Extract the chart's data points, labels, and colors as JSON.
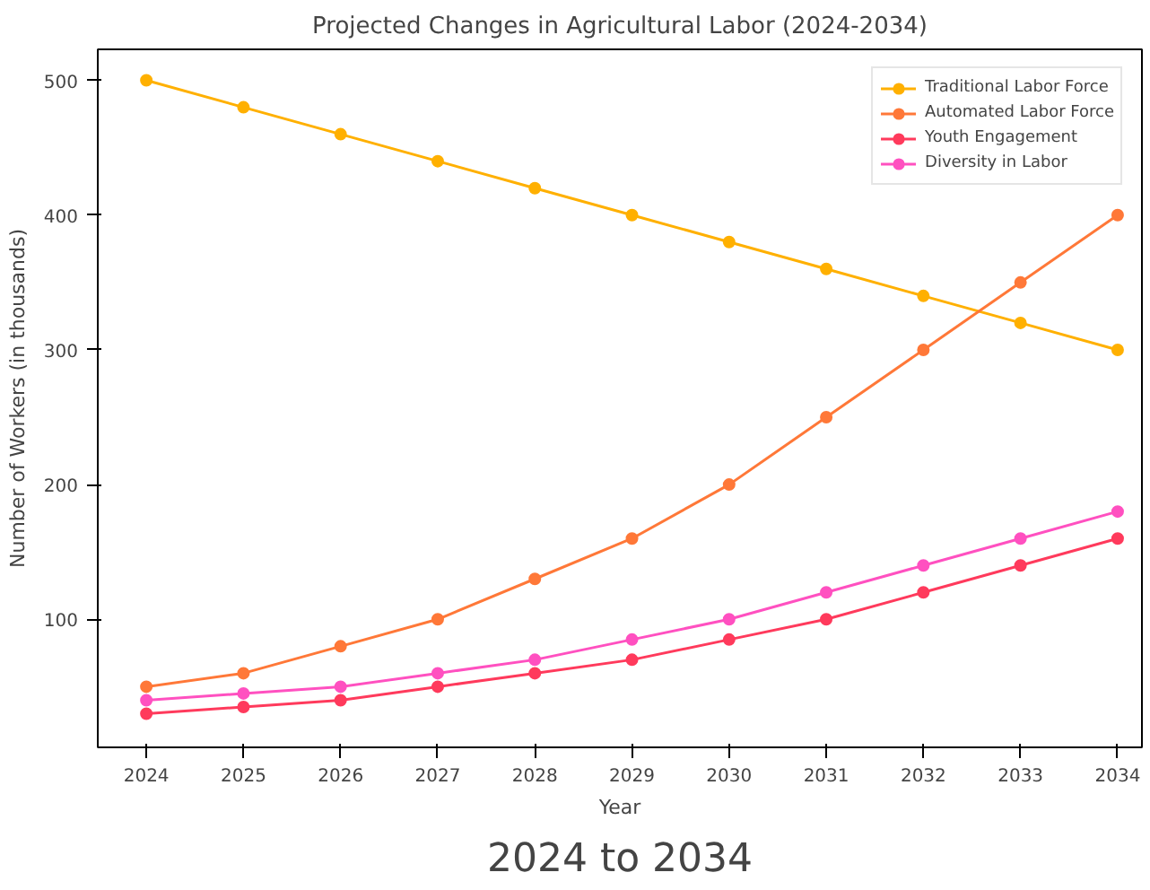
{
  "chart_data": {
    "type": "line",
    "title": "Projected Changes in Agricultural Labor (2024-2034)",
    "xlabel": "Year",
    "ylabel": "Number of Workers (in thousands)",
    "x": [
      2024,
      2025,
      2026,
      2027,
      2028,
      2029,
      2030,
      2031,
      2032,
      2033,
      2034
    ],
    "series": [
      {
        "name": "Traditional Labor Force",
        "color": "#ffb000",
        "values": [
          500,
          480,
          460,
          440,
          420,
          400,
          380,
          360,
          340,
          320,
          300
        ]
      },
      {
        "name": "Automated Labor Force",
        "color": "#ff7838",
        "values": [
          50,
          60,
          80,
          100,
          130,
          160,
          200,
          250,
          300,
          350,
          400
        ]
      },
      {
        "name": "Youth Engagement",
        "color": "#ff3a5c",
        "values": [
          30,
          35,
          40,
          50,
          60,
          70,
          85,
          100,
          120,
          140,
          160
        ]
      },
      {
        "name": "Diversity in Labor",
        "color": "#ff50c0",
        "values": [
          40,
          45,
          50,
          60,
          70,
          85,
          100,
          120,
          140,
          160,
          180
        ]
      }
    ],
    "xlim": [
      2023.5,
      2034.25
    ],
    "ylim": [
      5,
      523
    ],
    "xticks": [
      2024,
      2025,
      2026,
      2027,
      2028,
      2029,
      2030,
      2031,
      2032,
      2033,
      2034
    ],
    "yticks": [
      100,
      200,
      300,
      400,
      500
    ],
    "grid": false,
    "legend": "top right",
    "marker": "circle",
    "line_style": "solid",
    "annotations": [
      "2024 to 2034"
    ]
  }
}
